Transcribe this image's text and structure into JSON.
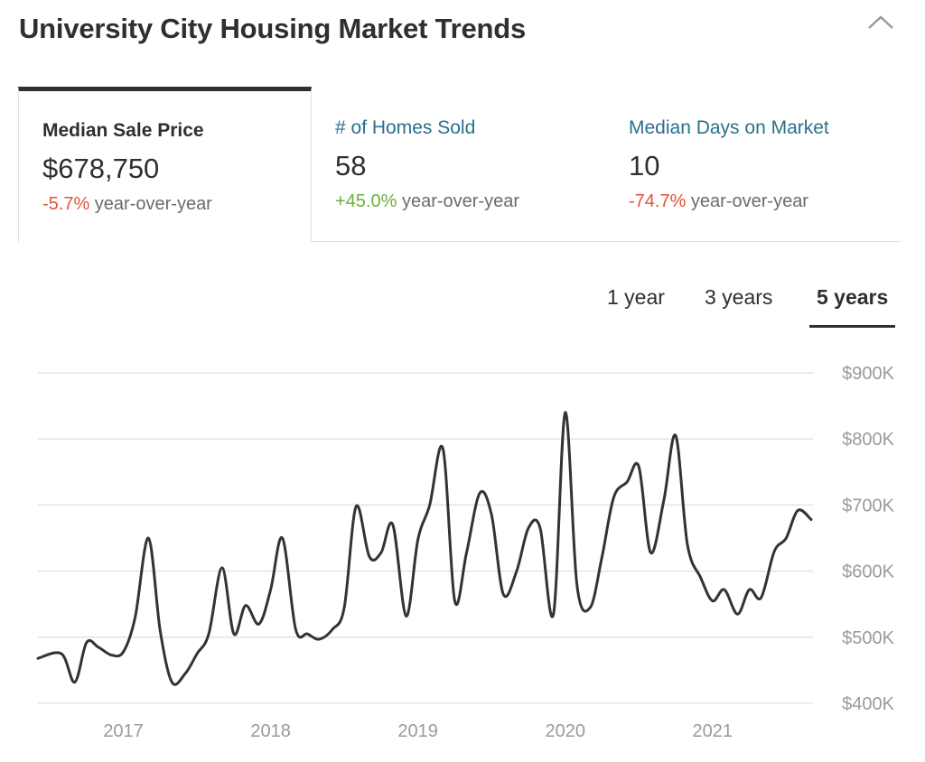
{
  "header": {
    "title": "University City Housing Market Trends"
  },
  "tabs": [
    {
      "label": "Median Sale Price",
      "value": "$678,750",
      "change": "-5.7%",
      "change_suffix": " year-over-year"
    },
    {
      "label": "# of Homes Sold",
      "value": "58",
      "change": "+45.0%",
      "change_suffix": " year-over-year"
    },
    {
      "label": "Median Days on Market",
      "value": "10",
      "change": "-74.7%",
      "change_suffix": " year-over-year"
    }
  ],
  "ranges": {
    "one_year": "1 year",
    "three_years": "3 years",
    "five_years": "5 years",
    "selected": "5 years"
  },
  "colors": {
    "negative": "#e2523a",
    "positive": "#6cae3f",
    "link": "#2b6f8d",
    "line": "#333333",
    "grid": "#e3e3e3"
  },
  "icons": {
    "collapse": "chevron-up-icon"
  },
  "chart_data": {
    "type": "line",
    "title": "",
    "xlabel": "",
    "ylabel": "",
    "ylim": [
      400000,
      900000
    ],
    "y_ticks": [
      900000,
      800000,
      700000,
      600000,
      500000,
      400000
    ],
    "y_tick_labels": [
      "$900K",
      "$800K",
      "$700K",
      "$600K",
      "$500K",
      "$400K"
    ],
    "x_tick_labels": [
      "2017",
      "2018",
      "2019",
      "2020",
      "2021"
    ],
    "grid": true,
    "series": [
      {
        "values": [
          [
            2016.42,
            468000
          ],
          [
            2016.58,
            475000
          ],
          [
            2016.67,
            432000
          ],
          [
            2016.75,
            492000
          ],
          [
            2016.83,
            485000
          ],
          [
            2016.92,
            473000
          ],
          [
            2017.0,
            478000
          ],
          [
            2017.08,
            530000
          ],
          [
            2017.17,
            650000
          ],
          [
            2017.25,
            510000
          ],
          [
            2017.33,
            432000
          ],
          [
            2017.42,
            445000
          ],
          [
            2017.5,
            475000
          ],
          [
            2017.58,
            505000
          ],
          [
            2017.67,
            605000
          ],
          [
            2017.75,
            505000
          ],
          [
            2017.83,
            548000
          ],
          [
            2017.92,
            520000
          ],
          [
            2018.0,
            572000
          ],
          [
            2018.08,
            650000
          ],
          [
            2018.17,
            512000
          ],
          [
            2018.25,
            505000
          ],
          [
            2018.33,
            497000
          ],
          [
            2018.42,
            512000
          ],
          [
            2018.5,
            545000
          ],
          [
            2018.58,
            698000
          ],
          [
            2018.67,
            622000
          ],
          [
            2018.75,
            628000
          ],
          [
            2018.83,
            670000
          ],
          [
            2018.92,
            532000
          ],
          [
            2019.0,
            648000
          ],
          [
            2019.08,
            700000
          ],
          [
            2019.17,
            785000
          ],
          [
            2019.25,
            555000
          ],
          [
            2019.33,
            628000
          ],
          [
            2019.42,
            718000
          ],
          [
            2019.5,
            685000
          ],
          [
            2019.58,
            565000
          ],
          [
            2019.67,
            600000
          ],
          [
            2019.75,
            665000
          ],
          [
            2019.83,
            665000
          ],
          [
            2019.92,
            535000
          ],
          [
            2020.0,
            840000
          ],
          [
            2020.08,
            578000
          ],
          [
            2020.17,
            545000
          ],
          [
            2020.25,
            622000
          ],
          [
            2020.33,
            712000
          ],
          [
            2020.42,
            735000
          ],
          [
            2020.5,
            758000
          ],
          [
            2020.58,
            628000
          ],
          [
            2020.67,
            708000
          ],
          [
            2020.75,
            805000
          ],
          [
            2020.83,
            640000
          ],
          [
            2020.92,
            590000
          ],
          [
            2021.0,
            555000
          ],
          [
            2021.08,
            572000
          ],
          [
            2021.17,
            535000
          ],
          [
            2021.25,
            572000
          ],
          [
            2021.33,
            560000
          ],
          [
            2021.42,
            630000
          ],
          [
            2021.5,
            650000
          ],
          [
            2021.58,
            692000
          ],
          [
            2021.67,
            678000
          ]
        ]
      }
    ]
  }
}
